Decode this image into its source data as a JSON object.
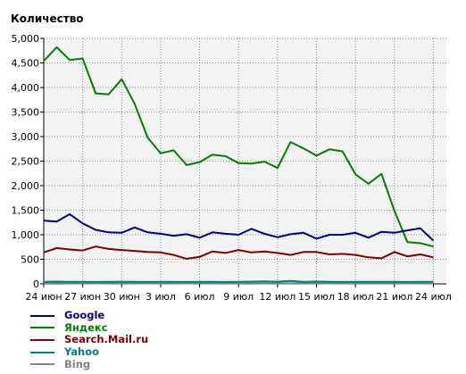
{
  "chart_data": {
    "type": "line",
    "ylabel": "Количество",
    "ylim": [
      0,
      5000
    ],
    "yticks": [
      0,
      500,
      1000,
      1500,
      2000,
      2500,
      3000,
      3500,
      4000,
      4500,
      5000
    ],
    "ytick_labels": [
      "0",
      "500",
      "1,000",
      "1,500",
      "2,000",
      "2,500",
      "3,000",
      "3,500",
      "4,000",
      "4,500",
      "5,000"
    ],
    "x": [
      "24 июн",
      "25 июн",
      "26 июн",
      "27 июн",
      "28 июн",
      "29 июн",
      "30 июн",
      "1 июл",
      "2 июл",
      "3 июл",
      "4 июл",
      "5 июл",
      "6 июл",
      "7 июл",
      "8 июл",
      "9 июл",
      "10 июл",
      "11 июл",
      "12 июл",
      "13 июл",
      "14 июл",
      "15 июл",
      "16 июл",
      "17 июл",
      "18 июл",
      "19 июл",
      "20 июл",
      "21 июл",
      "22 июл",
      "23 июл",
      "24 июл",
      "25 июл"
    ],
    "xtick_labels": [
      "24 июн",
      "27 июн",
      "30 июн",
      "3 июл",
      "6 июл",
      "9 июл",
      "12 июл",
      "15 июл",
      "18 июл",
      "21 июл",
      "24 июл"
    ],
    "grid": true,
    "legend_position": "bottom-left",
    "series": [
      {
        "name": "Google",
        "color": "#000080",
        "values": [
          1290,
          1270,
          1420,
          1230,
          1100,
          1050,
          1040,
          1150,
          1050,
          1020,
          980,
          1010,
          940,
          1050,
          1020,
          1000,
          1120,
          1020,
          950,
          1010,
          1040,
          920,
          1000,
          1000,
          1040,
          940,
          1060,
          1040,
          1090,
          1130,
          880,
          null
        ]
      },
      {
        "name": "Яндекс",
        "color": "#008000",
        "values": [
          4540,
          4820,
          4560,
          4590,
          3880,
          3860,
          4170,
          3670,
          2980,
          2660,
          2720,
          2420,
          2480,
          2630,
          2600,
          2460,
          2450,
          2490,
          2360,
          2890,
          2760,
          2610,
          2740,
          2700,
          2230,
          2040,
          2240,
          1490,
          850,
          830,
          760,
          null
        ]
      },
      {
        "name": "Search.Mail.ru",
        "color": "#800000",
        "values": [
          640,
          730,
          700,
          680,
          760,
          710,
          690,
          670,
          650,
          640,
          590,
          510,
          550,
          660,
          630,
          690,
          640,
          660,
          630,
          590,
          650,
          650,
          600,
          610,
          590,
          540,
          520,
          650,
          560,
          600,
          540,
          null
        ]
      },
      {
        "name": "Yahoo",
        "color": "#008080",
        "values": [
          40,
          45,
          40,
          42,
          38,
          40,
          44,
          40,
          39,
          41,
          40,
          38,
          40,
          42,
          39,
          41,
          45,
          50,
          44,
          60,
          42,
          48,
          40,
          39,
          41,
          40,
          42,
          40,
          39,
          41,
          40,
          null
        ]
      },
      {
        "name": "Bing",
        "color": "#808080",
        "values": [
          10,
          12,
          10,
          11,
          9,
          10,
          11,
          10,
          9,
          10,
          10,
          9,
          10,
          11,
          10,
          10,
          12,
          11,
          10,
          10,
          11,
          10,
          9,
          10,
          10,
          10,
          11,
          10,
          9,
          10,
          10,
          null
        ]
      }
    ]
  }
}
